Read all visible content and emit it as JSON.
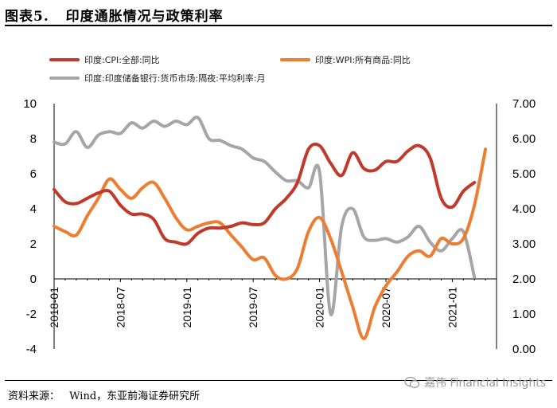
{
  "figure": {
    "title_label": "图表5.",
    "title_text": "印度通胀情况与政策利率",
    "source_label": "资料来源：",
    "source_text": "Wind，东亚前海证券研究所",
    "watermark": "嘉伟 Financial Insights"
  },
  "chart_data": {
    "type": "line",
    "title": "印度通胀情况与政策利率",
    "left_axis": {
      "min": -4,
      "max": 10,
      "ticks": [
        -4,
        -2,
        0,
        2,
        4,
        6,
        8,
        10
      ],
      "tick_labels": [
        "-4",
        "-2",
        "0",
        "2",
        "4",
        "6",
        "8",
        "10"
      ]
    },
    "right_axis": {
      "min": 0,
      "max": 7,
      "ticks": [
        0,
        1,
        2,
        3,
        4,
        5,
        6,
        7
      ],
      "tick_labels": [
        "0.00",
        "1.00",
        "2.00",
        "3.00",
        "4.00",
        "5.00",
        "6.00",
        "7.00"
      ]
    },
    "x_axis": {
      "start": "2018-01",
      "months": 41,
      "tick_labels": [
        "2018-01",
        "2018-07",
        "2019-01",
        "2019-07",
        "2020-01",
        "2020-07",
        "2021-01"
      ],
      "tick_index": [
        0,
        6,
        12,
        18,
        24,
        30,
        36
      ]
    },
    "legend_position": "top",
    "series": [
      {
        "name": "印度:CPI:全部:同比",
        "axis": "left",
        "color": "#c0392b",
        "values": [
          5.1,
          4.4,
          4.3,
          4.6,
          4.9,
          5.0,
          4.2,
          3.7,
          3.7,
          3.4,
          2.3,
          2.1,
          2.0,
          2.6,
          2.9,
          2.9,
          3.0,
          3.2,
          3.1,
          3.2,
          4.0,
          4.6,
          5.5,
          7.4,
          7.6,
          6.6,
          5.9,
          7.2,
          6.3,
          6.2,
          6.7,
          6.7,
          7.3,
          7.6,
          6.9,
          4.6,
          4.1,
          5.0,
          5.5
        ]
      },
      {
        "name": "印度:WPI:所有商品:同比",
        "axis": "left",
        "color": "#ed7d31",
        "values": [
          3.0,
          2.7,
          2.5,
          3.6,
          4.6,
          5.7,
          5.1,
          4.6,
          5.2,
          5.5,
          4.6,
          3.5,
          2.8,
          3.0,
          3.2,
          3.2,
          2.5,
          1.8,
          1.1,
          1.2,
          0.2,
          0.0,
          0.6,
          2.7,
          3.5,
          2.3,
          0.4,
          -1.6,
          -3.4,
          -1.6,
          -0.4,
          0.4,
          1.3,
          1.6,
          1.3,
          2.3,
          2.0,
          2.3,
          4.2,
          7.4
        ]
      },
      {
        "name": "印度:印度储备银行:货币市场:隔夜:平均利率:月",
        "axis": "right",
        "color": "#a6a6a6",
        "values": [
          5.9,
          5.85,
          6.2,
          5.75,
          6.1,
          6.2,
          6.15,
          6.45,
          6.3,
          6.5,
          6.35,
          6.5,
          6.4,
          6.6,
          6.0,
          5.95,
          5.8,
          5.7,
          5.45,
          5.35,
          5.05,
          4.8,
          4.8,
          4.6,
          5.05,
          1.0,
          3.5,
          4.0,
          3.2,
          3.1,
          3.15,
          3.05,
          3.2,
          3.5,
          3.05,
          2.8,
          3.15,
          3.35,
          2.05
        ]
      }
    ]
  }
}
